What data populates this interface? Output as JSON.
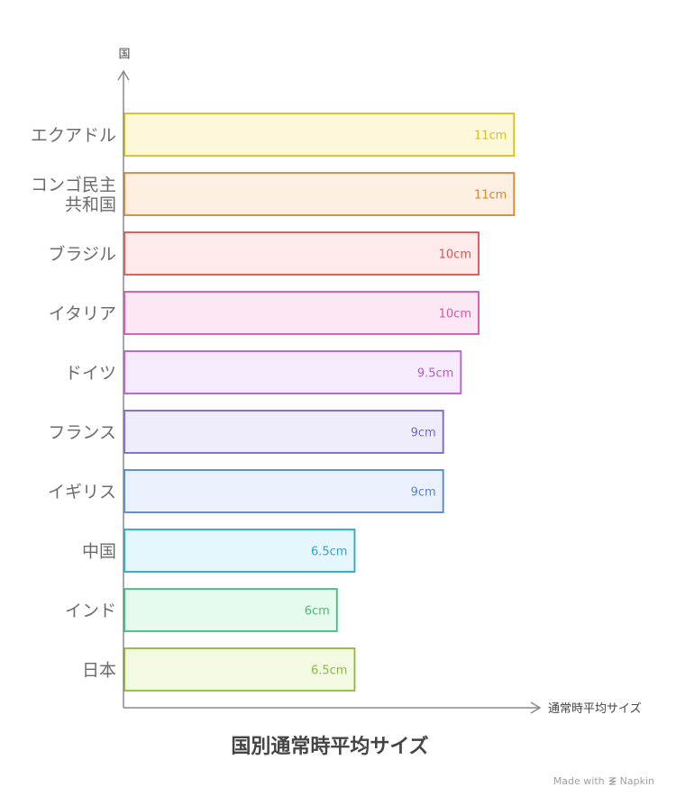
{
  "chart_data": {
    "type": "bar",
    "orientation": "horizontal",
    "title": "国別通常時平均サイズ",
    "xlabel": "通常時平均サイズ",
    "ylabel": "国",
    "categories": [
      "エクアドル",
      "コンゴ民主共和国",
      "ブラジル",
      "イタリア",
      "ドイツ",
      "フランス",
      "イギリス",
      "中国",
      "インド",
      "日本"
    ],
    "category_lines": [
      [
        "エクアドル"
      ],
      [
        "コンゴ民主",
        "共和国"
      ],
      [
        "ブラジル"
      ],
      [
        "イタリア"
      ],
      [
        "ドイツ"
      ],
      [
        "フランス"
      ],
      [
        "イギリス"
      ],
      [
        "中国"
      ],
      [
        "インド"
      ],
      [
        "日本"
      ]
    ],
    "values": [
      11,
      11,
      10,
      10,
      9.5,
      9,
      9,
      6.5,
      6,
      6.5
    ],
    "value_labels": [
      "11cm",
      "11cm",
      "10cm",
      "10cm",
      "9.5cm",
      "9cm",
      "9cm",
      "6.5cm",
      "6cm",
      "6.5cm"
    ],
    "unit": "cm",
    "xlim": [
      0,
      11
    ],
    "grid": false,
    "legend": "none",
    "colors": {
      "stroke": [
        "#d8bf1c",
        "#d68730",
        "#d9534f",
        "#cf55a8",
        "#b65ad4",
        "#7a62d2",
        "#4f86d0",
        "#21a8cc",
        "#3fbf7a",
        "#8cba38"
      ],
      "fill": [
        "#fdf8d9",
        "#fdf0e3",
        "#fdeaea",
        "#fce8f4",
        "#f6ebfd",
        "#efecfc",
        "#eaf1fc",
        "#e5f7fc",
        "#e6fbee",
        "#f2fbe1"
      ],
      "label": [
        "#d8bf1c",
        "#d68730",
        "#d9534f",
        "#cf55a8",
        "#b65ad4",
        "#7a62d2",
        "#4f86d0",
        "#21a8cc",
        "#3fbf7a",
        "#8cba38"
      ]
    }
  },
  "footer": {
    "credit": "Made with",
    "brand": "Napkin"
  }
}
